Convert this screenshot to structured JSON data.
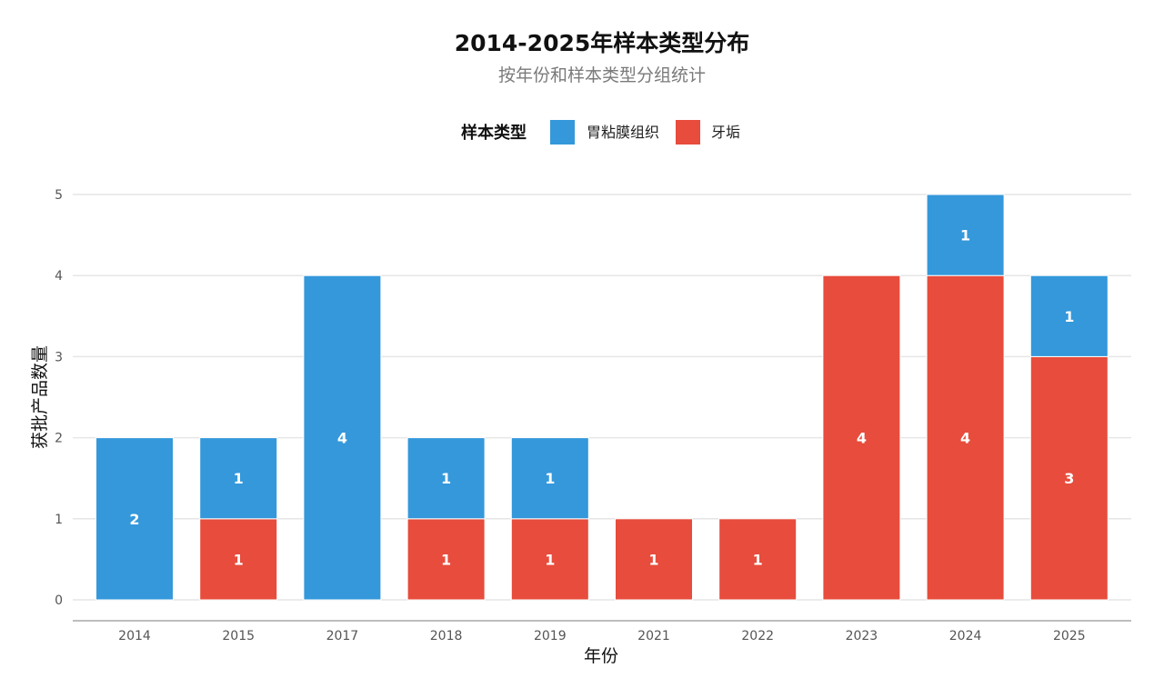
{
  "chart_data": {
    "type": "bar",
    "stacked": true,
    "title": "2014-2025年样本类型分布",
    "subtitle": "按年份和样本类型分组统计",
    "xlabel": "年份",
    "ylabel": "获批产品数量",
    "categories": [
      "2014",
      "2015",
      "2017",
      "2018",
      "2019",
      "2021",
      "2022",
      "2023",
      "2024",
      "2025"
    ],
    "legend": {
      "title": "样本类型",
      "position": "top"
    },
    "series": [
      {
        "name": "牙垢",
        "color": "#e74c3c",
        "values": [
          0,
          1,
          0,
          1,
          1,
          1,
          1,
          4,
          4,
          3
        ]
      },
      {
        "name": "胃粘膜组织",
        "color": "#3498db",
        "values": [
          2,
          1,
          4,
          1,
          1,
          0,
          0,
          0,
          1,
          1
        ]
      }
    ],
    "legend_order": [
      "胃粘膜组织",
      "牙垢"
    ],
    "ylim": [
      0,
      5
    ],
    "yticks": [
      0,
      1,
      2,
      3,
      4,
      5
    ],
    "grid": true
  }
}
